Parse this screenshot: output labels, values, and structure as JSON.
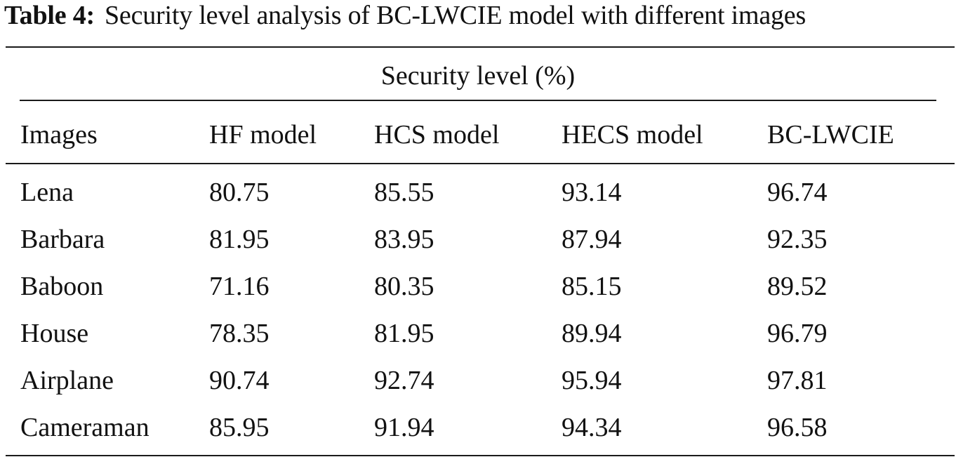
{
  "caption": {
    "label": "Table 4:",
    "text": "Security level analysis of BC-LWCIE model with different images"
  },
  "table": {
    "group_header": "Security level (%)",
    "columns": [
      "Images",
      "HF model",
      "HCS model",
      "HECS model",
      "BC-LWCIE"
    ],
    "rows": [
      [
        "Lena",
        "80.75",
        "85.55",
        "93.14",
        "96.74"
      ],
      [
        "Barbara",
        "81.95",
        "83.95",
        "87.94",
        "92.35"
      ],
      [
        "Baboon",
        "71.16",
        "80.35",
        "85.15",
        "89.52"
      ],
      [
        "House",
        "78.35",
        "81.95",
        "89.94",
        "96.79"
      ],
      [
        "Airplane",
        "90.74",
        "92.74",
        "95.94",
        "97.81"
      ],
      [
        "Cameraman",
        "85.95",
        "91.94",
        "94.34",
        "96.58"
      ]
    ]
  }
}
